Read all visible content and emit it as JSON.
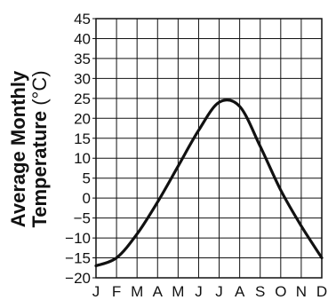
{
  "chart_data": {
    "type": "line",
    "ylabel_line1": "Average Monthly",
    "ylabel_line2_bold": "Temperature",
    "ylabel_line2_unit": " (°C)",
    "x": [
      "J",
      "F",
      "M",
      "A",
      "M",
      "J",
      "J",
      "A",
      "S",
      "O",
      "N",
      "D"
    ],
    "ylim": [
      -20,
      45
    ],
    "ytick_step": 5,
    "grid": true,
    "series": [
      {
        "values": [
          -17,
          -15,
          -9,
          -1,
          8,
          17,
          24,
          23,
          13,
          2,
          -7,
          -15
        ]
      }
    ]
  }
}
